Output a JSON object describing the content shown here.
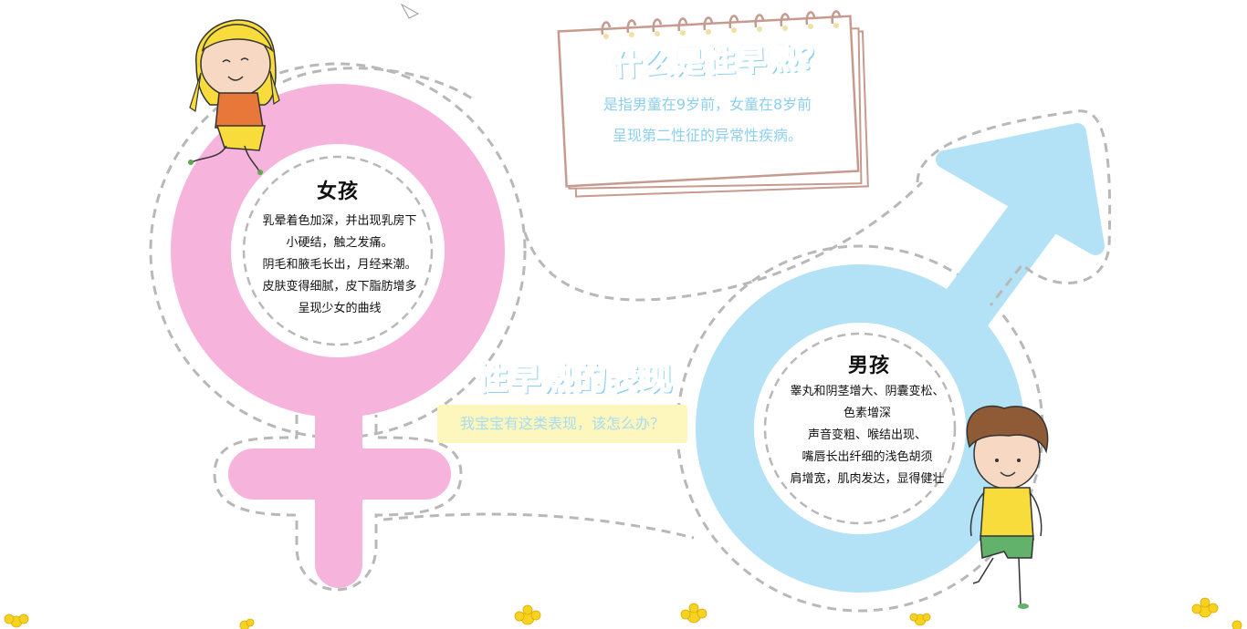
{
  "note": {
    "title": "什么是性早熟？",
    "line1": "是指男童在9岁前，女童在8岁前",
    "line2": "呈现第二性征的异常性疾病。"
  },
  "center": {
    "title": "性早熟的表现",
    "subtitle": "我宝宝有这类表现，该怎么办？"
  },
  "girl": {
    "title": "女孩",
    "lines": [
      "乳晕着色加深，并出现乳房下",
      "小硬结，触之发痛。",
      "阴毛和腋毛长出，月经来潮。",
      "皮肤变得细腻，皮下脂肪增多",
      "呈现少女的曲线"
    ]
  },
  "boy": {
    "title": "男孩",
    "lines": [
      "睾丸和阴茎增大、阴囊变松、",
      "色素增深",
      "声音变粗、喉结出现、",
      "嘴唇长出纤细的浅色胡须",
      "肩增宽，肌肉发达，显得健壮"
    ]
  },
  "colors": {
    "female_pink": "#f6b3db",
    "male_blue": "#b3e2f6",
    "dash_gray": "#b8b8b8",
    "title_blue": "#b9e3f8",
    "note_border": "#c79a8f",
    "subtitle_bg": "#fdf6bd",
    "flower_yellow": "#f7d321"
  },
  "icons": [
    "female-symbol-icon",
    "male-symbol-icon",
    "girl-cartoon-icon",
    "boy-cartoon-icon",
    "notepad-icon",
    "flower-icon"
  ]
}
